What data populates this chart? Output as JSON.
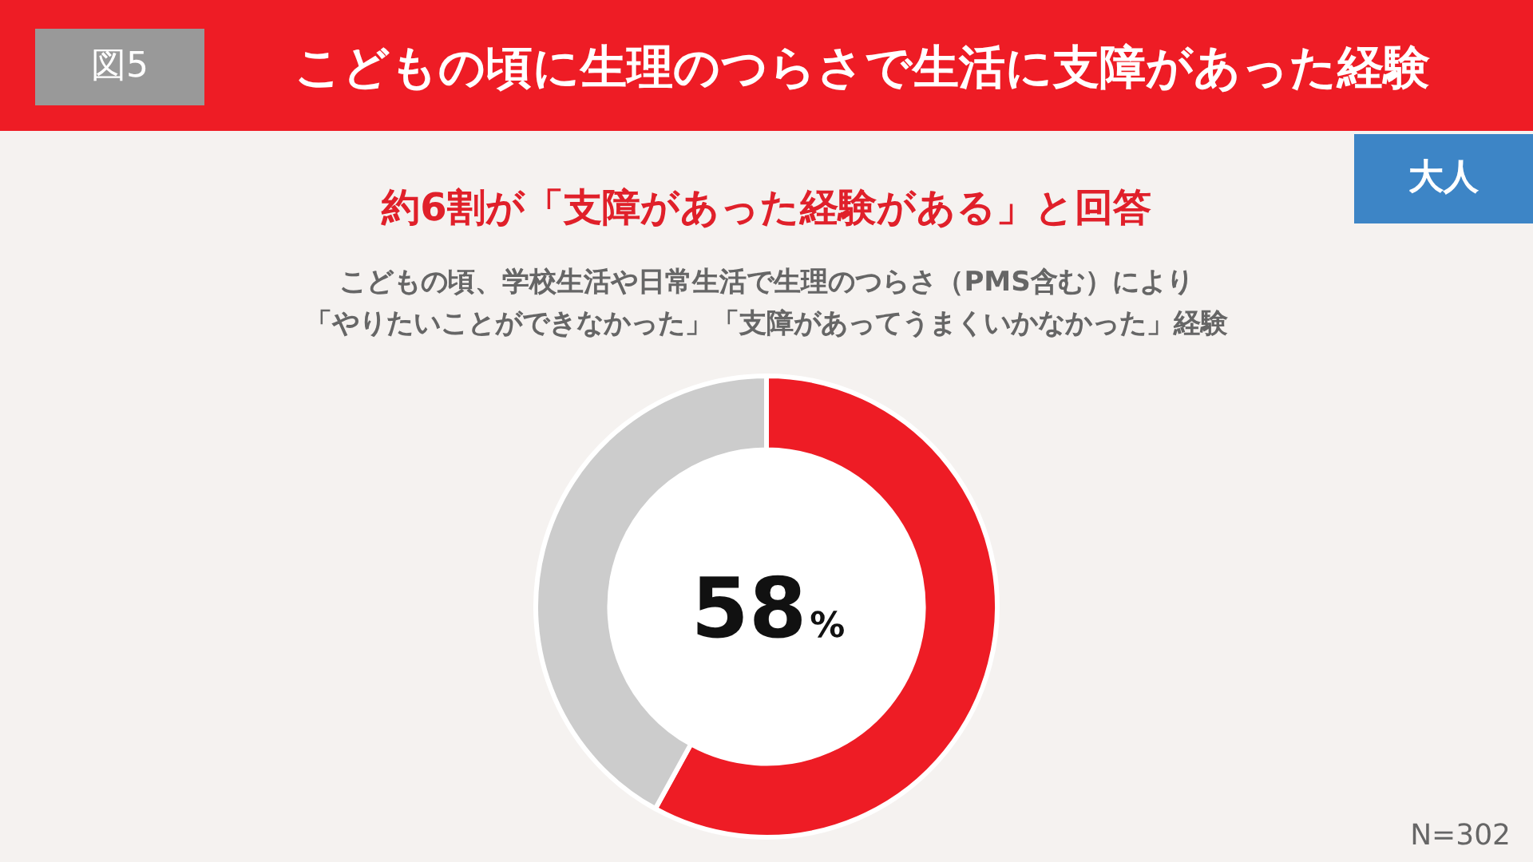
{
  "chart_data": {
    "type": "donut",
    "title": "こどもの頃に生理のつらさで生活に支障があった経験",
    "subtitle": "約6割が「支障があった経験がある」と回答",
    "categories": [
      null,
      null
    ],
    "values": [
      58,
      42
    ],
    "colors": [
      "#ee1c25",
      "#cccccc"
    ],
    "value_labels": [
      "58%",
      null
    ],
    "annotations": [
      "図5",
      "大人",
      "こどもの頃、学校生活や日常生活で生理のつらさ（PMS含む）により",
      "「やりたいことができなかった」「支障があってうまくいかなかった」経験",
      "N=302"
    ]
  }
}
